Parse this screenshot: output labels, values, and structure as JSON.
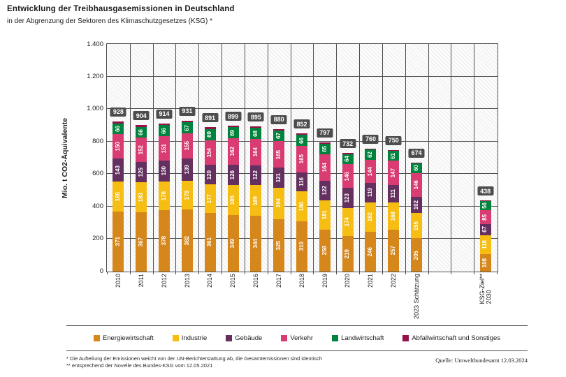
{
  "title": "Entwicklung der Treibhausgasemissionen in Deutschland",
  "subtitle": "in der Abgrenzung der Sektoren des Klimaschutzgesetzes (KSG) *",
  "chart_data": {
    "type": "bar",
    "stacked": true,
    "title": "Entwicklung der Treibhausgasemissionen in Deutschland",
    "xlabel": "",
    "ylabel": "Mio. t CO2-Äquivalente",
    "ylim": [
      0,
      1400
    ],
    "yticks": [
      "1.400",
      "1.200",
      "1.000",
      "800",
      "600",
      "400",
      "200",
      "0"
    ],
    "grid": true,
    "legend_position": "bottom",
    "num_columns": 17,
    "categories": [
      "2010",
      "2011",
      "2012",
      "2013",
      "2014",
      "2015",
      "2016",
      "2017",
      "2018",
      "2019",
      "2020",
      "2021",
      "2022",
      "2023 Schätzung",
      "KSG-Ziel** 2030"
    ],
    "bars": [
      {
        "label": "2010",
        "col": 0,
        "total": 928
      },
      {
        "label": "2011",
        "col": 1,
        "total": 904
      },
      {
        "label": "2012",
        "col": 2,
        "total": 914
      },
      {
        "label": "2013",
        "col": 3,
        "total": 931
      },
      {
        "label": "2014",
        "col": 4,
        "total": 891
      },
      {
        "label": "2015",
        "col": 5,
        "total": 899
      },
      {
        "label": "2016",
        "col": 6,
        "total": 895
      },
      {
        "label": "2017",
        "col": 7,
        "total": 880
      },
      {
        "label": "2018",
        "col": 8,
        "total": 852
      },
      {
        "label": "2019",
        "col": 9,
        "total": 797
      },
      {
        "label": "2020",
        "col": 10,
        "total": 732
      },
      {
        "label": "2021",
        "col": 11,
        "total": 760
      },
      {
        "label": "2022",
        "col": 12,
        "total": 750
      },
      {
        "label": "2023 Schätzung",
        "col": 13,
        "total": 674
      },
      {
        "label": "KSG-Ziel**\n2030",
        "col": 16,
        "total": 438
      }
    ],
    "series": [
      {
        "name": "Energiewirtschaft",
        "color": "#d6871c",
        "show_labels": true,
        "values": [
          371,
          367,
          378,
          382,
          361,
          349,
          344,
          325,
          310,
          258,
          219,
          246,
          257,
          205,
          108
        ]
      },
      {
        "name": "Industrie",
        "color": "#f6bd13",
        "show_labels": true,
        "values": [
          185,
          183,
          178,
          178,
          177,
          185,
          189,
          194,
          186,
          181,
          174,
          182,
          168,
          155,
          118
        ]
      },
      {
        "name": "Gebäude",
        "color": "#64305f",
        "show_labels": true,
        "values": [
          143,
          125,
          130,
          139,
          120,
          126,
          122,
          121,
          116,
          122,
          123,
          119,
          111,
          102,
          67
        ]
      },
      {
        "name": "Verkehr",
        "color": "#d93c72",
        "show_labels": true,
        "values": [
          150,
          152,
          151,
          155,
          154,
          162,
          164,
          165,
          165,
          164,
          146,
          144,
          147,
          146,
          85
        ]
      },
      {
        "name": "Landwirtschaft",
        "color": "#00833d",
        "show_labels": true,
        "values": [
          66,
          66,
          66,
          67,
          69,
          69,
          68,
          67,
          66,
          65,
          64,
          62,
          61,
          60,
          56
        ]
      },
      {
        "name": "Abfallwirtschaft und Sonstiges",
        "color": "#96114a",
        "show_labels": false,
        "values": [
          13,
          11,
          11,
          10,
          10,
          8,
          8,
          8,
          9,
          7,
          6,
          7,
          6,
          6,
          4
        ]
      }
    ],
    "total_label_bg": "#4d4d4d"
  },
  "footnotes": {
    "line1": "* Die Aufteilung der Emissionen weicht von der UN-Berichterstattung ab, die Gesamtemissionen sind identisch",
    "line2": "** entsprechend der Novelle des Bundes-KSG vom 12.05.2021"
  },
  "source": "Quelle: Umweltbundesamt   12.03.2024"
}
